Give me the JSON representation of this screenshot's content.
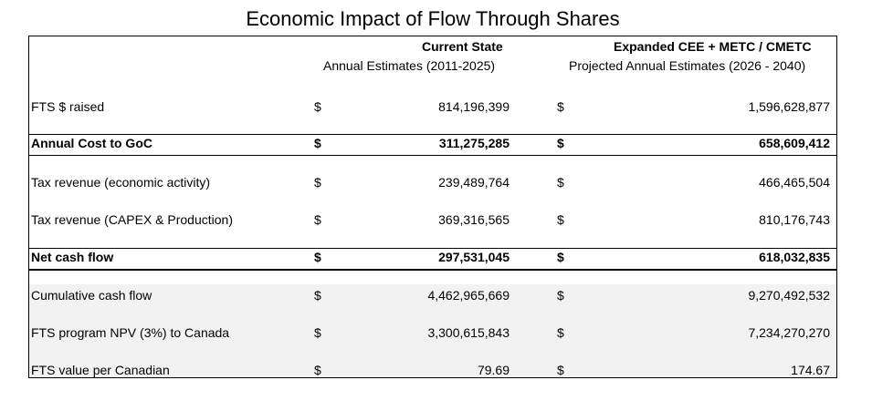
{
  "title": "Economic Impact of Flow Through Shares",
  "columns": {
    "current": {
      "header": "Current State",
      "subheader": "Annual Estimates (2011-2025)"
    },
    "expanded": {
      "header": "Expanded CEE + METC / CMETC",
      "subheader": "Projected Annual Estimates (2026 - 2040)"
    }
  },
  "currency_symbol": "$",
  "rows": [
    {
      "label": "FTS $ raised",
      "current": "814,196,399",
      "expanded": "1,596,628,877"
    },
    {
      "label": "Annual Cost to GoC",
      "current": "311,275,285",
      "expanded": "658,609,412"
    },
    {
      "label": "Tax revenue (economic activity)",
      "current": "239,489,764",
      "expanded": "466,465,504"
    },
    {
      "label": "Tax revenue (CAPEX & Production)",
      "current": "369,316,565",
      "expanded": "810,176,743"
    },
    {
      "label": "Net cash flow",
      "current": "297,531,045",
      "expanded": "618,032,835"
    },
    {
      "label": "Cumulative cash flow",
      "current": "4,462,965,669",
      "expanded": "9,270,492,532"
    },
    {
      "label": "FTS program NPV (3%) to Canada",
      "current": "3,300,615,843",
      "expanded": "7,234,270,270"
    },
    {
      "label": "FTS value per Canadian",
      "current": "79.69",
      "expanded": "174.67"
    }
  ]
}
